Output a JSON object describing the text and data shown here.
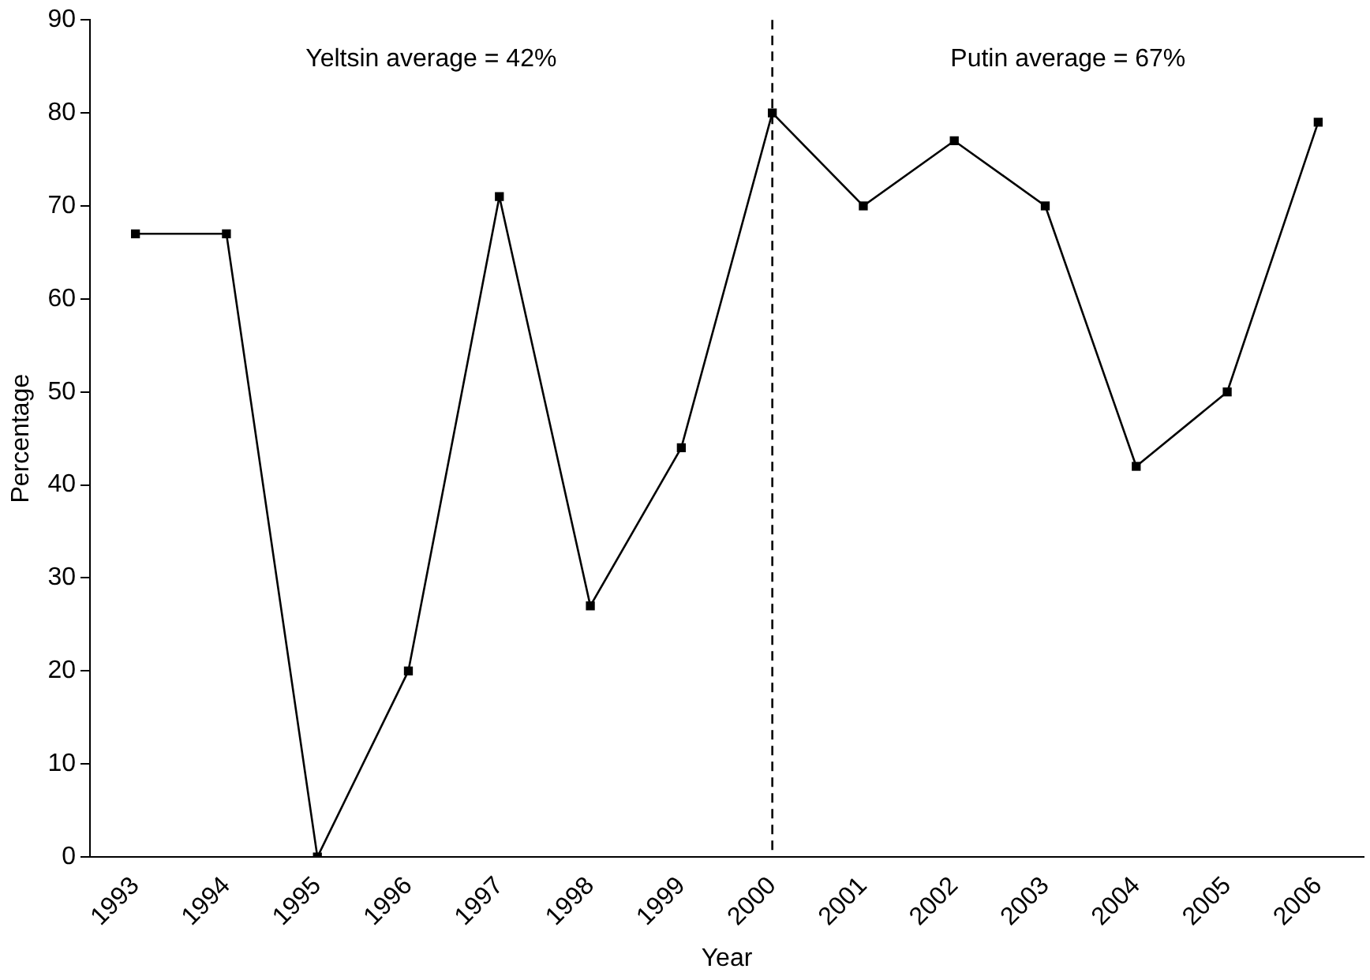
{
  "chart_data": {
    "type": "line",
    "xlabel": "Year",
    "ylabel": "Percentage",
    "categories": [
      "1993",
      "1994",
      "1995",
      "1996",
      "1997",
      "1998",
      "1999",
      "2000",
      "2001",
      "2002",
      "2003",
      "2004",
      "2005",
      "2006"
    ],
    "series": [
      {
        "color": "#000000",
        "values": [
          67,
          67,
          0,
          20,
          71,
          27,
          44,
          80,
          70,
          77,
          70,
          42,
          50,
          79
        ]
      }
    ],
    "ylim": [
      0,
      90
    ],
    "yticks": [
      0,
      10,
      20,
      30,
      40,
      50,
      60,
      70,
      80,
      90
    ],
    "grid": false,
    "legend": false,
    "marker": "square",
    "line_style": "solid",
    "ref_lines": [
      {
        "axis": "x",
        "value": "2000",
        "color": "#000000",
        "line_style": "dashed"
      }
    ],
    "annotations": [
      "Yeltsin average = 42%",
      "Putin average = 67%"
    ]
  }
}
